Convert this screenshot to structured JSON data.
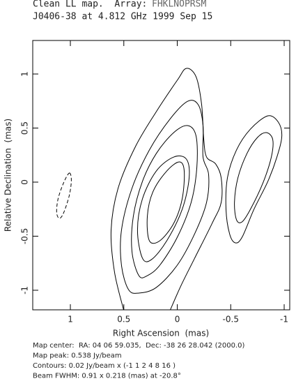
{
  "chart_data": {
    "type": "contour",
    "title": "Clean LL map.  Array:",
    "array": "FHKLNOPRSM",
    "subtitle": "J0406-38 at 4.812 GHz 1999 Sep 15",
    "xlabel": "Right Ascension  (mas)",
    "ylabel": "Relative Declination  (mas)",
    "xlim": [
      1.352,
      -1.052
    ],
    "ylim": [
      -1.181,
      1.31
    ],
    "xticks": [
      1,
      0.5,
      0,
      -0.5,
      -1
    ],
    "yticks": [
      -1,
      -0.5,
      0,
      0.5,
      1
    ],
    "notes": [
      "Map center:  RA: 04 06 59.035,  Dec: -38 26 28.042 (2000.0)",
      "Map peak: 0.538 Jy/beam",
      "Contours: 0.02 Jy/beam x (-1 1 2 4 8 16 )",
      "Beam FWHM: 0.91 x 0.218 (mas) at -20.8°"
    ],
    "contours": [
      {
        "level": -1,
        "closed": true,
        "x": [
          1.01,
          0.991,
          1.01,
          1.063,
          1.102,
          1.128,
          1.115,
          1.063
        ],
        "y": [
          0.084,
          0.019,
          -0.123,
          -0.284,
          -0.335,
          -0.284,
          -0.155,
          -0.006
        ]
      },
      {
        "level": 1,
        "closed": true,
        "x": [
          -0.847,
          -0.945,
          -0.978,
          -0.932,
          -0.847,
          -0.717,
          -0.606,
          -0.541,
          -0.489,
          -0.456,
          -0.469,
          -0.554,
          -0.684
        ],
        "y": [
          0.613,
          0.555,
          0.426,
          0.232,
          0.006,
          -0.252,
          -0.51,
          -0.561,
          -0.477,
          -0.252,
          0.039,
          0.297,
          0.49
        ]
      },
      {
        "level": 2,
        "closed": true,
        "x": [
          -0.834,
          -0.893,
          -0.88,
          -0.802,
          -0.684,
          -0.606,
          -0.554,
          -0.535,
          -0.567,
          -0.652,
          -0.75
        ],
        "y": [
          0.458,
          0.394,
          0.232,
          -0.006,
          -0.252,
          -0.368,
          -0.348,
          -0.187,
          0.039,
          0.265,
          0.413
        ]
      },
      {
        "level": 1,
        "closed": false,
        "x": [
          0.502,
          0.587,
          0.619,
          0.554,
          0.391,
          0.196,
          0,
          -0.085,
          -0.176,
          -0.228,
          -0.248,
          -0.274,
          -0.359,
          -0.411,
          -0.411,
          -0.326,
          -0.163,
          -0.033,
          0.065
        ],
        "y": [
          -1.181,
          -0.832,
          -0.445,
          -0.058,
          0.329,
          0.652,
          0.942,
          1.052,
          0.974,
          0.716,
          0.394,
          0.232,
          0.168,
          0.039,
          -0.187,
          -0.381,
          -0.703,
          -0.961,
          -1.181
        ]
      },
      {
        "level": 2,
        "closed": true,
        "x": [
          0.456,
          0.522,
          0.522,
          0.424,
          0.261,
          0.065,
          -0.098,
          -0.196,
          -0.241,
          -0.241,
          -0.293,
          -0.274,
          -0.163,
          0,
          0.196,
          0.359
        ],
        "y": [
          -0.994,
          -0.768,
          -0.445,
          -0.058,
          0.297,
          0.587,
          0.748,
          0.716,
          0.523,
          0.232,
          0.071,
          -0.187,
          -0.477,
          -0.768,
          -0.974,
          -1.026
        ]
      },
      {
        "level": 4,
        "closed": true,
        "x": [
          0.359,
          0.424,
          0.411,
          0.326,
          0.196,
          0.033,
          -0.098,
          -0.176,
          -0.183,
          -0.13,
          0,
          0.163,
          0.28
        ],
        "y": [
          -0.865,
          -0.639,
          -0.316,
          0.006,
          0.265,
          0.458,
          0.523,
          0.426,
          0.135,
          -0.187,
          -0.51,
          -0.768,
          -0.865
        ]
      },
      {
        "level": 8,
        "closed": true,
        "x": [
          0.326,
          0.372,
          0.326,
          0.196,
          0.033,
          -0.085,
          -0.111,
          -0.046,
          0.098,
          0.241
        ],
        "y": [
          -0.703,
          -0.445,
          -0.155,
          0.103,
          0.232,
          0.213,
          0.039,
          -0.252,
          -0.542,
          -0.716
        ]
      },
      {
        "level": 16,
        "closed": true,
        "x": [
          0.261,
          0.28,
          0.228,
          0.098,
          -0.02,
          -0.065,
          -0.046,
          0.033,
          0.163
        ],
        "y": [
          -0.542,
          -0.316,
          -0.09,
          0.103,
          0.187,
          0.103,
          -0.155,
          -0.381,
          -0.542
        ]
      }
    ]
  }
}
